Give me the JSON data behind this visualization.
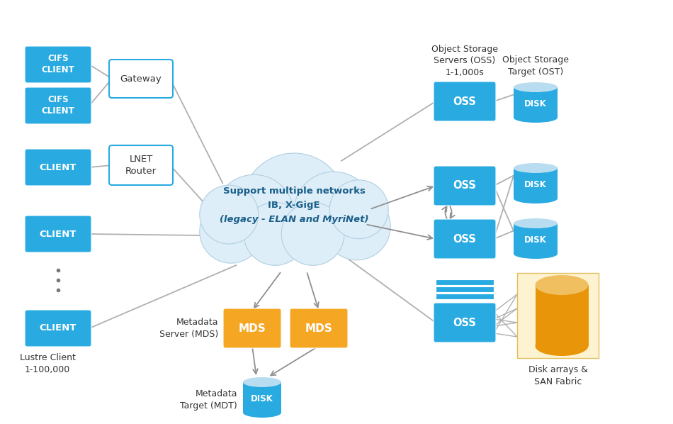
{
  "bg_color": "#ffffff",
  "blue_box_color": "#29abe2",
  "blue_box_text_color": "#ffffff",
  "orange_box_color": "#f5a623",
  "gateway_box_color": "#ffffff",
  "gateway_box_edge": "#29abe2",
  "cloud_color": "#deeef8",
  "cloud_edge": "#b0cfe0",
  "disk_top_color": "#b8ddf0",
  "disk_body_color": "#29abe2",
  "disk_san_top_color": "#f0c060",
  "disk_san_body_color": "#e8950a",
  "san_bg_color": "#fef3d0",
  "line_color": "#b0b0b0",
  "arrow_color": "#909090",
  "cloud_text_color": "#1a5f8a",
  "cloud_text": [
    "Support multiple networks",
    "IB, X-GigE",
    "(legacy - ELAN and MyriNet)"
  ],
  "labels": {
    "cifs1": "CIFS\nCLIENT",
    "cifs2": "CIFS\nCLIENT",
    "client1": "CLIENT",
    "client2": "CLIENT",
    "client3": "CLIENT",
    "gateway": "Gateway",
    "lnet": "LNET\nRouter",
    "mds1": "MDS",
    "mds2": "MDS",
    "oss1": "OSS",
    "oss2": "OSS",
    "oss3": "OSS",
    "oss4": "OSS",
    "disk1": "DISK",
    "disk2": "DISK",
    "disk3": "DISK"
  },
  "annotations": {
    "lustre_client": "Lustre Client\n1-100,000",
    "metadata_server": "Metadata\nServer (MDS)",
    "metadata_target": "Metadata\nTarget (MDT)",
    "oss_label": "Object Storage\nServers (OSS)\n1-1,000s",
    "ost_label": "Object Storage\nTarget (OST)",
    "disk_arrays": "Disk arrays &\nSAN Fabric"
  }
}
